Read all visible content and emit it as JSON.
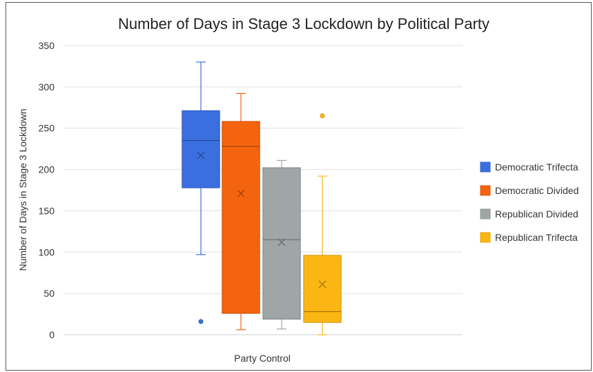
{
  "chart_data": {
    "type": "box",
    "title": "Number of Days in Stage 3 Lockdown by Political Party",
    "xlabel": "Party Control",
    "ylabel": "Number of Days in Stage 3 Lockdown",
    "ylim": [
      0,
      350
    ],
    "yticks": [
      0,
      50,
      100,
      150,
      200,
      250,
      300,
      350
    ],
    "grid": true,
    "legend_position": "right",
    "series": [
      {
        "name": "Democratic Trifecta",
        "color": "#3b6fe0",
        "whisker_low": 97,
        "q1": 178,
        "median": 235,
        "q3": 271,
        "whisker_high": 330,
        "mean": 217,
        "outliers": [
          16
        ]
      },
      {
        "name": "Democratic Divided",
        "color": "#f4640f",
        "whisker_low": 6,
        "q1": 26,
        "median": 228,
        "q3": 258,
        "whisker_high": 292,
        "mean": 171,
        "outliers": []
      },
      {
        "name": "Republican Divided",
        "color": "#9fa6a6",
        "whisker_low": 7,
        "q1": 19,
        "median": 115,
        "q3": 202,
        "whisker_high": 211,
        "mean": 112,
        "outliers": []
      },
      {
        "name": "Republican Trifecta",
        "color": "#fbb614",
        "whisker_low": 0,
        "q1": 15,
        "median": 28,
        "q3": 96,
        "whisker_high": 192,
        "mean": 61,
        "outliers": [
          265
        ]
      }
    ]
  }
}
